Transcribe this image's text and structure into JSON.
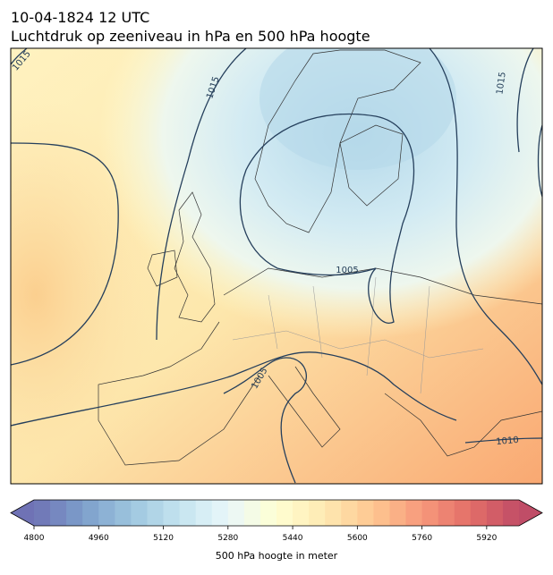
{
  "title": [
    "10-04-1824 12 UTC",
    "Luchtdruk op zeeniveau in hPa en 500 hPa hoogte"
  ],
  "contour_labels": [
    1015,
    1015,
    1015,
    1005,
    1005,
    1010
  ],
  "colorbar": {
    "label": "500 hPa hoogte in meter",
    "range": [
      4800,
      6000
    ],
    "ticks": [
      4800,
      4960,
      5120,
      5280,
      5440,
      5600,
      5760,
      5920
    ],
    "colormap": "RdYlBu_r",
    "extend": "both"
  }
}
